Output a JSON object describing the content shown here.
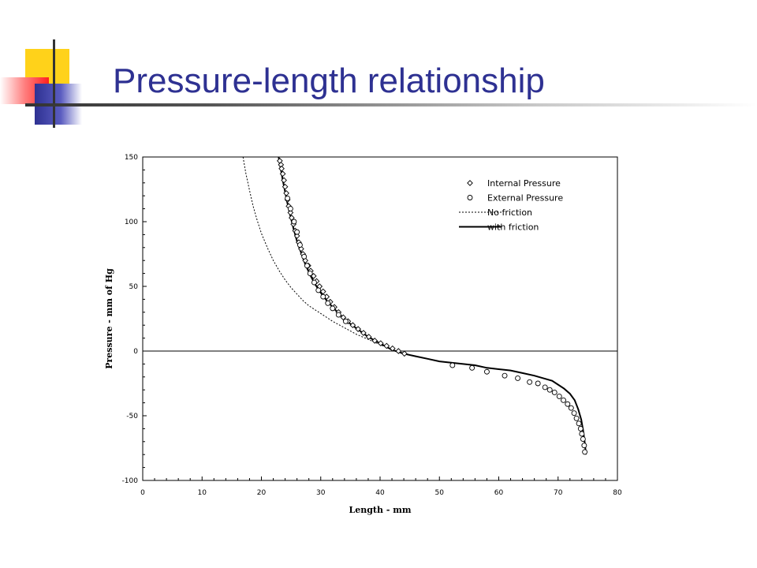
{
  "slide": {
    "title": "Pressure-length relationship",
    "title_color": "#2e3192"
  },
  "decoration": {
    "colors": [
      "#ffd21a",
      "#ff3030",
      "#2e3192",
      "#333333"
    ]
  },
  "chart_data": {
    "type": "scatter",
    "title": "",
    "xlabel": "Length - mm",
    "ylabel": "Pressure - mm of Hg",
    "xlim": [
      0,
      80
    ],
    "ylim": [
      -100,
      150
    ],
    "xticks": [
      0,
      10,
      20,
      30,
      40,
      50,
      60,
      70,
      80
    ],
    "yticks": [
      150,
      100,
      50,
      0,
      -50,
      -100
    ],
    "grid": false,
    "legend_position": "top-right",
    "series": [
      {
        "name": "Internal Pressure",
        "kind": "scatter",
        "marker": "diamond",
        "points": [
          [
            23.1,
            147
          ],
          [
            23.3,
            144
          ],
          [
            23.4,
            141
          ],
          [
            23.6,
            137
          ],
          [
            23.8,
            132
          ],
          [
            24.0,
            127
          ],
          [
            24.2,
            122
          ],
          [
            24.4,
            117
          ],
          [
            24.6,
            112
          ],
          [
            24.9,
            107
          ],
          [
            25.1,
            103
          ],
          [
            25.4,
            98
          ],
          [
            25.7,
            93
          ],
          [
            26.0,
            89
          ],
          [
            26.3,
            84
          ],
          [
            26.7,
            79
          ],
          [
            27.0,
            75
          ],
          [
            27.4,
            70
          ],
          [
            27.9,
            66
          ],
          [
            28.3,
            62
          ],
          [
            28.8,
            58
          ],
          [
            29.3,
            54
          ],
          [
            29.8,
            50
          ],
          [
            30.4,
            46
          ],
          [
            31.0,
            42
          ],
          [
            31.6,
            38
          ],
          [
            32.3,
            34
          ],
          [
            33.0,
            30
          ],
          [
            33.8,
            26
          ],
          [
            34.6,
            23
          ],
          [
            35.4,
            20
          ],
          [
            36.3,
            17
          ],
          [
            37.2,
            14
          ],
          [
            38.1,
            11
          ],
          [
            39.1,
            8
          ],
          [
            40.1,
            6
          ],
          [
            41.1,
            4
          ],
          [
            42.1,
            2
          ],
          [
            43.1,
            0
          ],
          [
            44.1,
            -2
          ]
        ]
      },
      {
        "name": "External Pressure",
        "kind": "scatter",
        "marker": "circle",
        "points": [
          [
            24.4,
            118
          ],
          [
            24.9,
            110
          ],
          [
            25.5,
            100
          ],
          [
            26.0,
            92
          ],
          [
            26.5,
            82
          ],
          [
            27.2,
            73
          ],
          [
            27.7,
            66
          ],
          [
            28.2,
            60
          ],
          [
            28.9,
            53
          ],
          [
            29.6,
            47
          ],
          [
            30.4,
            42
          ],
          [
            31.2,
            37
          ],
          [
            32.0,
            33
          ],
          [
            33.0,
            28
          ],
          [
            34.2,
            23
          ],
          [
            52.2,
            -11
          ],
          [
            55.5,
            -13
          ],
          [
            58.0,
            -16
          ],
          [
            61.0,
            -19
          ],
          [
            63.2,
            -21
          ],
          [
            65.2,
            -24
          ],
          [
            66.6,
            -25
          ],
          [
            67.8,
            -28
          ],
          [
            68.6,
            -30
          ],
          [
            69.4,
            -32
          ],
          [
            70.2,
            -35
          ],
          [
            70.9,
            -38
          ],
          [
            71.6,
            -41
          ],
          [
            72.2,
            -44
          ],
          [
            72.7,
            -48
          ],
          [
            73.1,
            -52
          ],
          [
            73.5,
            -56
          ],
          [
            73.8,
            -60
          ],
          [
            74.0,
            -64
          ],
          [
            74.2,
            -68
          ],
          [
            74.4,
            -73
          ],
          [
            74.5,
            -78
          ]
        ]
      },
      {
        "name": "No friction",
        "kind": "line",
        "style": "dotted",
        "points": [
          [
            16.9,
            150
          ],
          [
            17.4,
            137
          ],
          [
            18.0,
            124
          ],
          [
            18.6,
            112
          ],
          [
            19.3,
            101
          ],
          [
            20.0,
            91
          ],
          [
            21.0,
            80
          ],
          [
            22.0,
            70
          ],
          [
            23.0,
            62
          ],
          [
            24.0,
            55
          ],
          [
            25.0,
            49
          ],
          [
            26.0,
            44
          ],
          [
            27.0,
            39
          ],
          [
            28.0,
            35
          ],
          [
            30.0,
            29
          ],
          [
            32.0,
            23
          ],
          [
            34.0,
            18
          ],
          [
            36.0,
            13
          ],
          [
            38.0,
            9
          ],
          [
            40.0,
            5
          ],
          [
            42.0,
            1
          ],
          [
            44.0,
            -2
          ]
        ]
      },
      {
        "name": "with friction",
        "kind": "line",
        "style": "solid",
        "points": [
          [
            22.8,
            153
          ],
          [
            23.0,
            147
          ],
          [
            23.3,
            140
          ],
          [
            23.6,
            132
          ],
          [
            24.0,
            123
          ],
          [
            24.4,
            114
          ],
          [
            24.9,
            104
          ],
          [
            25.4,
            95
          ],
          [
            26.0,
            85
          ],
          [
            26.7,
            76
          ],
          [
            27.4,
            67
          ],
          [
            28.2,
            59
          ],
          [
            29.0,
            52
          ],
          [
            30.0,
            45
          ],
          [
            31.0,
            39
          ],
          [
            32.2,
            33
          ],
          [
            33.5,
            27
          ],
          [
            35.0,
            21
          ],
          [
            36.5,
            16
          ],
          [
            38.0,
            11
          ],
          [
            40.0,
            6
          ],
          [
            42.0,
            1
          ],
          [
            44.0,
            -2
          ],
          [
            46.0,
            -4
          ],
          [
            48.0,
            -6
          ],
          [
            50.0,
            -8
          ],
          [
            52.0,
            -9
          ],
          [
            54.0,
            -10
          ],
          [
            56.0,
            -11
          ],
          [
            58.0,
            -13
          ],
          [
            60.0,
            -14
          ],
          [
            62.0,
            -15
          ],
          [
            64.0,
            -17
          ],
          [
            66.0,
            -19
          ],
          [
            67.5,
            -21
          ],
          [
            69.0,
            -23
          ],
          [
            70.0,
            -26
          ],
          [
            71.0,
            -29
          ],
          [
            72.0,
            -33
          ],
          [
            72.8,
            -38
          ],
          [
            73.4,
            -45
          ],
          [
            73.9,
            -53
          ],
          [
            74.2,
            -61
          ],
          [
            74.5,
            -71
          ],
          [
            74.7,
            -80
          ]
        ]
      }
    ]
  }
}
